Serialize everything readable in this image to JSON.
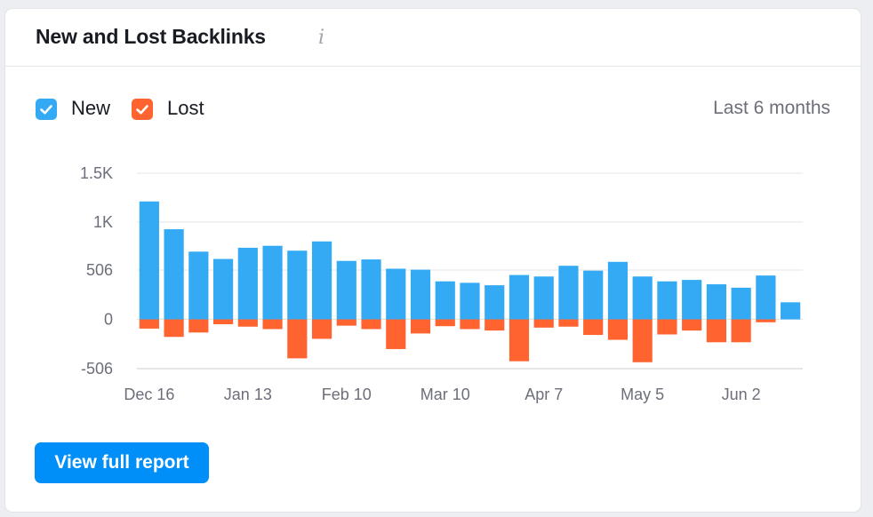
{
  "widget": {
    "title": "New and Lost Backlinks",
    "info_icon": "info-icon",
    "period_label": "Last 6 months",
    "button_label": "View full report"
  },
  "colors": {
    "new": "#34aaf5",
    "lost": "#ff6430",
    "accent": "#008ff8",
    "grid": "#e3e5e8"
  },
  "chart_data": {
    "type": "bar",
    "stacked": true,
    "title": "",
    "xlabel": "",
    "ylabel": "",
    "ylim": [
      -506,
      1500
    ],
    "yticks": [
      1500,
      1000,
      506,
      0,
      -506
    ],
    "ytick_labels": [
      "1.5K",
      "1K",
      "506",
      "0",
      "-506"
    ],
    "xtick_labels": [
      "Dec 16",
      "Jan 13",
      "Feb 10",
      "Mar 10",
      "Apr 7",
      "May 5",
      "Jun 2"
    ],
    "xtick_positions": [
      0,
      4,
      8,
      12,
      16,
      20,
      24
    ],
    "legend_position": "top-left",
    "grid": true,
    "series": [
      {
        "name": "New",
        "color_key": "new",
        "values": [
          1210,
          925,
          695,
          620,
          735,
          755,
          705,
          800,
          600,
          615,
          520,
          510,
          390,
          375,
          350,
          455,
          440,
          550,
          500,
          590,
          440,
          390,
          405,
          360,
          325,
          450,
          175
        ]
      },
      {
        "name": "Lost",
        "color_key": "lost",
        "values": [
          -95,
          -180,
          -135,
          -50,
          -75,
          -100,
          -400,
          -200,
          -65,
          -100,
          -305,
          -145,
          -70,
          -100,
          -115,
          -430,
          -85,
          -75,
          -160,
          -210,
          -440,
          -155,
          -115,
          -235,
          -235,
          -30,
          0
        ]
      }
    ]
  }
}
